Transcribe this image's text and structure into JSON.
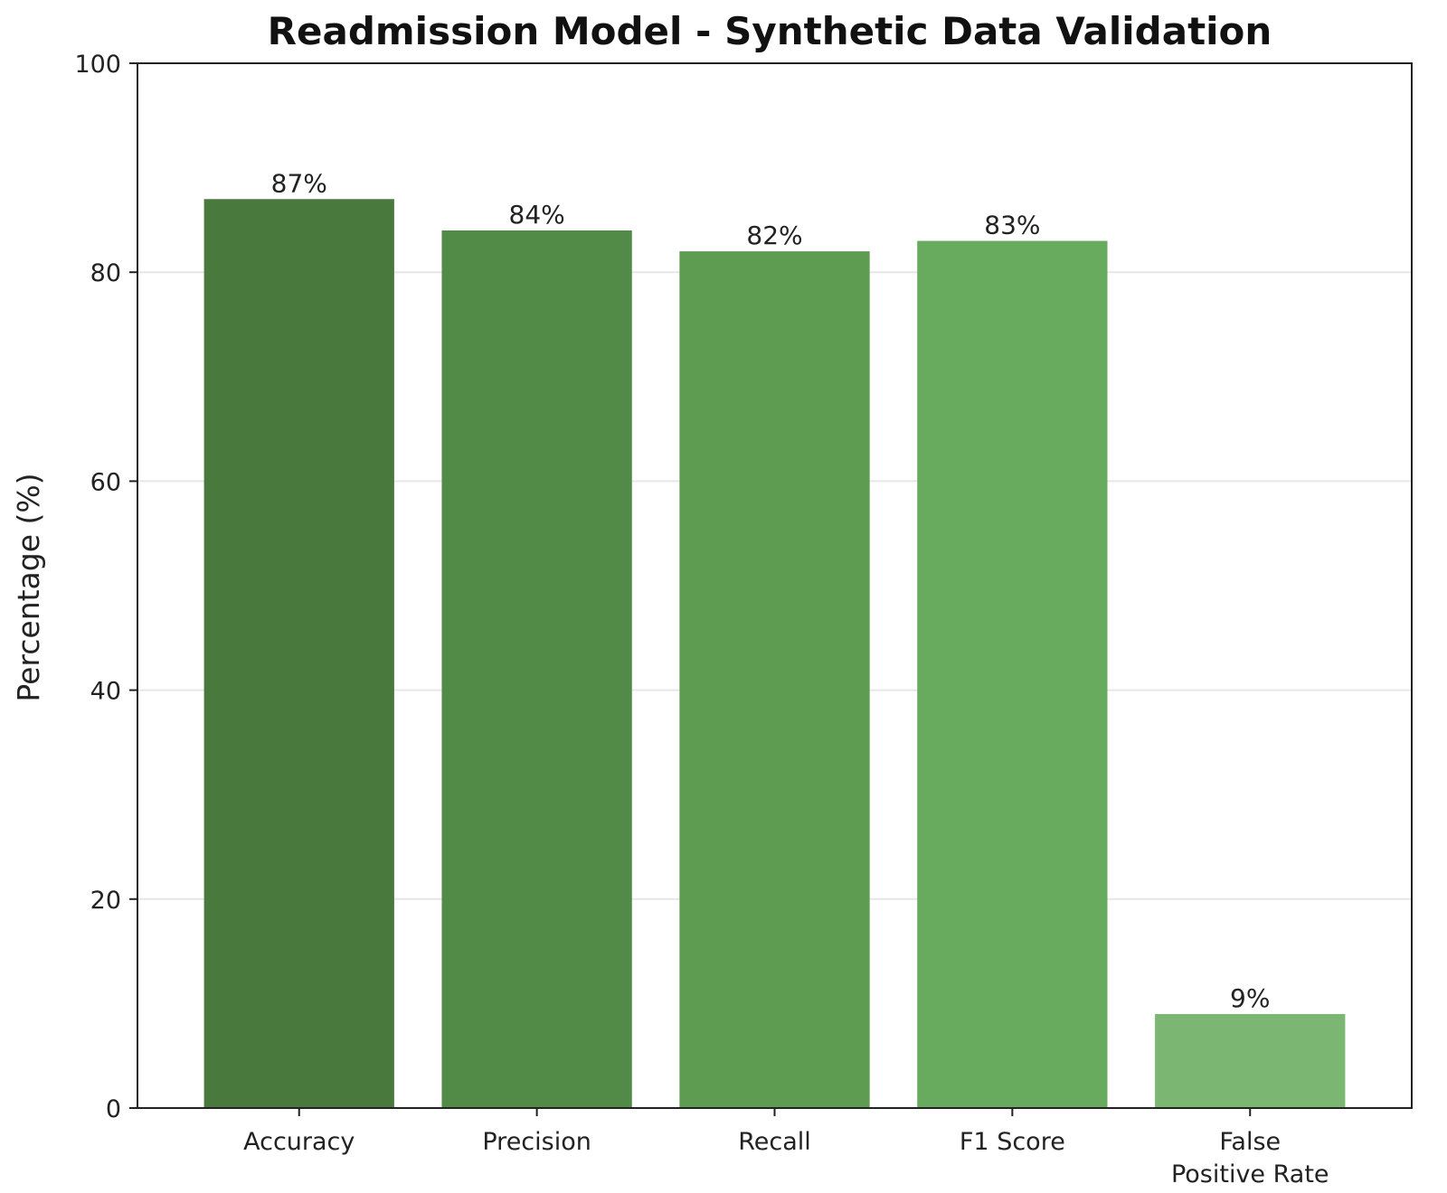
{
  "chart_data": {
    "type": "bar",
    "title": "Readmission Model - Synthetic Data Validation",
    "xlabel": "",
    "ylabel": "Percentage (%)",
    "ylim": [
      0,
      100
    ],
    "yticks": [
      "0",
      "20",
      "40",
      "60",
      "80",
      "100"
    ],
    "grid": "horizontal",
    "categories": [
      [
        "Accuracy"
      ],
      [
        "Precision"
      ],
      [
        "Recall"
      ],
      [
        "F1 Score"
      ],
      [
        "False",
        "Positive Rate"
      ]
    ],
    "values": [
      87,
      84,
      82,
      83,
      9
    ],
    "value_labels": [
      "87%",
      "84%",
      "82%",
      "83%",
      "9%"
    ],
    "colors": [
      "#49793d",
      "#528b48",
      "#5e9c52",
      "#68ab5e",
      "#7bb672"
    ]
  }
}
